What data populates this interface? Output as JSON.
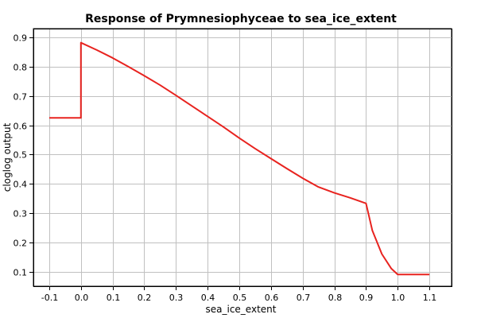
{
  "chart_data": {
    "type": "line",
    "title": "Response of Prymnesiophyceae to sea_ice_extent",
    "xlabel": "sea_ice_extent",
    "ylabel": "cloglog output",
    "xlim": [
      -0.15,
      1.17
    ],
    "ylim": [
      0.05,
      0.93
    ],
    "xticks": [
      -0.1,
      0.0,
      0.1,
      0.2,
      0.3,
      0.4,
      0.5,
      0.6,
      0.7,
      0.8,
      0.9,
      1.0,
      1.1
    ],
    "xtick_labels": [
      "-0.1",
      "0.0",
      "0.1",
      "0.2",
      "0.3",
      "0.4",
      "0.5",
      "0.6",
      "0.7",
      "0.8",
      "0.9",
      "1.0",
      "1.1"
    ],
    "yticks": [
      0.1,
      0.2,
      0.3,
      0.4,
      0.5,
      0.6,
      0.7,
      0.8,
      0.9
    ],
    "ytick_labels": [
      "0.1",
      "0.2",
      "0.3",
      "0.4",
      "0.5",
      "0.6",
      "0.7",
      "0.8",
      "0.9"
    ],
    "grid": true,
    "series": [
      {
        "color": "#e8231f",
        "x": [
          -0.1,
          0.0,
          0.0,
          0.05,
          0.1,
          0.15,
          0.2,
          0.25,
          0.3,
          0.35,
          0.4,
          0.45,
          0.5,
          0.55,
          0.6,
          0.65,
          0.7,
          0.75,
          0.8,
          0.85,
          0.9,
          0.92,
          0.95,
          0.98,
          1.0,
          1.1
        ],
        "y": [
          0.625,
          0.625,
          0.882,
          0.857,
          0.83,
          0.8,
          0.769,
          0.737,
          0.702,
          0.666,
          0.63,
          0.594,
          0.556,
          0.52,
          0.486,
          0.452,
          0.419,
          0.389,
          0.369,
          0.352,
          0.333,
          0.24,
          0.16,
          0.11,
          0.09,
          0.09
        ]
      }
    ]
  }
}
